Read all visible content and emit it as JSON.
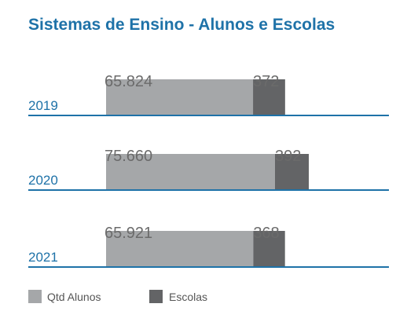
{
  "chart_data": {
    "type": "bar",
    "stacked": true,
    "orientation": "horizontal",
    "title": "Sistemas de Ensino - Alunos e Escolas",
    "categories": [
      "2019",
      "2020",
      "2021"
    ],
    "series": [
      {
        "name": "Qtd Alunos",
        "values": [
          65824,
          75660,
          65921
        ],
        "labels": [
          "65.824",
          "75.660",
          "65.921"
        ],
        "color": "#a5a7a9"
      },
      {
        "name": "Escolas",
        "values": [
          372,
          392,
          368
        ],
        "labels": [
          "372",
          "392",
          "368"
        ],
        "color": "#636466"
      }
    ],
    "axis_color": "#1e72a8",
    "legend_position": "bottom-left",
    "grid": false
  }
}
